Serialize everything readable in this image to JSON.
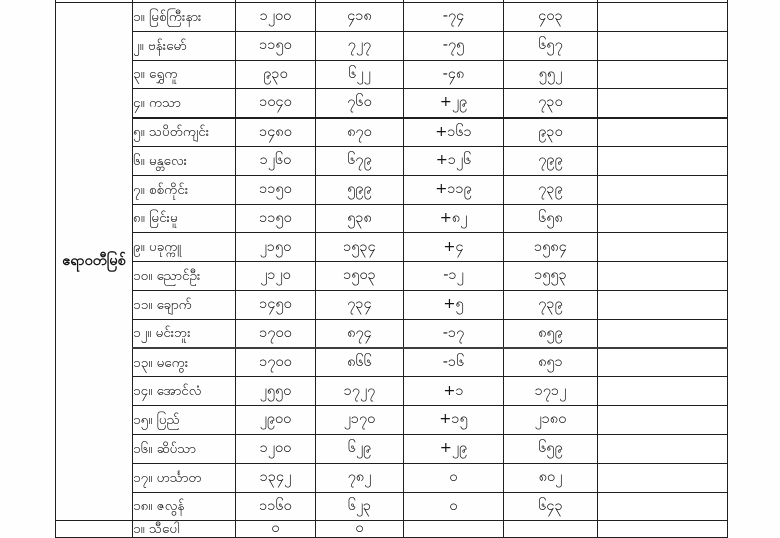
{
  "document": {
    "type": "scanned-water-level-table",
    "language": "Burmese",
    "text_color": "#141414",
    "border_color": "#1f1f1f",
    "paper_color": "#ffffff"
  },
  "river_group": {
    "label": "ဧရာဝတီမြစ်"
  },
  "table": {
    "rows": [
      {
        "station": "၁။ မြစ်ကြီးနား",
        "v1": "၁၂၀၀",
        "v2": "၄၁၈",
        "change": "-၇၄",
        "v3": "၄၀၃",
        "remark": ""
      },
      {
        "station": "၂။ ဗန်းမော်",
        "v1": "၁၁၅၀",
        "v2": "၇၂၇",
        "change": "-၇၅",
        "v3": "၆၅၇",
        "remark": ""
      },
      {
        "station": "၃။ ရွှေကူ",
        "v1": "၉၃၀",
        "v2": "၆၂၂",
        "change": "-၄၈",
        "v3": "၅၅၂",
        "remark": ""
      },
      {
        "station": "၄။ ကသာ",
        "v1": "၁၀၄၀",
        "v2": "၇၆၀",
        "change": "+၂၉",
        "v3": "၇၃၀",
        "remark": ""
      },
      {
        "station": "၅။ သပိတ်ကျင်း",
        "v1": "၁၄၈၀",
        "v2": "၈၇၀",
        "change": "+၁၆၁",
        "v3": "၉၃၀",
        "remark": ""
      },
      {
        "station": "၆။ မန္တလေး",
        "v1": "၁၂၆၀",
        "v2": "၆၇၉",
        "change": "+၁၂၆",
        "v3": "၇၉၉",
        "remark": ""
      },
      {
        "station": "၇။ စစ်ကိုင်း",
        "v1": "၁၁၅၀",
        "v2": "၅၉၉",
        "change": "+၁၁၉",
        "v3": "၇၃၉",
        "remark": ""
      },
      {
        "station": "၈။ မြင်းမူ",
        "v1": "၁၁၅၀",
        "v2": "၅၃၈",
        "change": "+၈၂",
        "v3": "၆၅၈",
        "remark": ""
      },
      {
        "station": "၉။ ပခုက္ကူ",
        "v1": "၂၁၅၀",
        "v2": "၁၅၃၄",
        "change": "+၄",
        "v3": "၁၅၈၄",
        "remark": ""
      },
      {
        "station": "၁၀။ ညောင်ဦး",
        "v1": "၂၁၂၀",
        "v2": "၁၅၀၃",
        "change": "-၁၂",
        "v3": "၁၅၅၃",
        "remark": ""
      },
      {
        "station": "၁၁။ ချောက်",
        "v1": "၁၄၅၀",
        "v2": "၇၃၄",
        "change": "+၅",
        "v3": "၇၃၉",
        "remark": ""
      },
      {
        "station": "၁၂။ မင်းဘူး",
        "v1": "၁၇၀၀",
        "v2": "၈၇၄",
        "change": "-၁၇",
        "v3": "၈၅၉",
        "remark": ""
      },
      {
        "station": "၁၃။ မကွေး",
        "v1": "၁၇၀၀",
        "v2": "၈၆၆",
        "change": "-၁၆",
        "v3": "၈၅၁",
        "remark": ""
      },
      {
        "station": "၁၄။ အောင်လံ",
        "v1": "၂၅၅၀",
        "v2": "၁၇၂၇",
        "change": "+၁",
        "v3": "၁၇၁၂",
        "remark": ""
      },
      {
        "station": "၁၅။ ပြည်",
        "v1": "၂၉၀၀",
        "v2": "၂၁၇၀",
        "change": "+၁၅",
        "v3": "၂၁၈၀",
        "remark": ""
      },
      {
        "station": "၁၆။ ဆိပ်သာ",
        "v1": "၁၂၀၀",
        "v2": "၆၂၉",
        "change": "+၂၉",
        "v3": "၆၅၉",
        "remark": ""
      },
      {
        "station": "၁၇။ ဟင်္သာတ",
        "v1": "၁၃၄၂",
        "v2": "၇၈၂",
        "change": "၀",
        "v3": "၈၀၂",
        "remark": ""
      },
      {
        "station": "၁၈။ ဇလွန်",
        "v1": "၁၁၆၀",
        "v2": "၆၂၃",
        "change": "၀",
        "v3": "၆၄၃",
        "remark": ""
      }
    ],
    "partial_row": {
      "station": "၁။ သီပေါ",
      "v1": "၀",
      "v2": "၀",
      "change": "",
      "v3": "",
      "remark": ""
    }
  }
}
